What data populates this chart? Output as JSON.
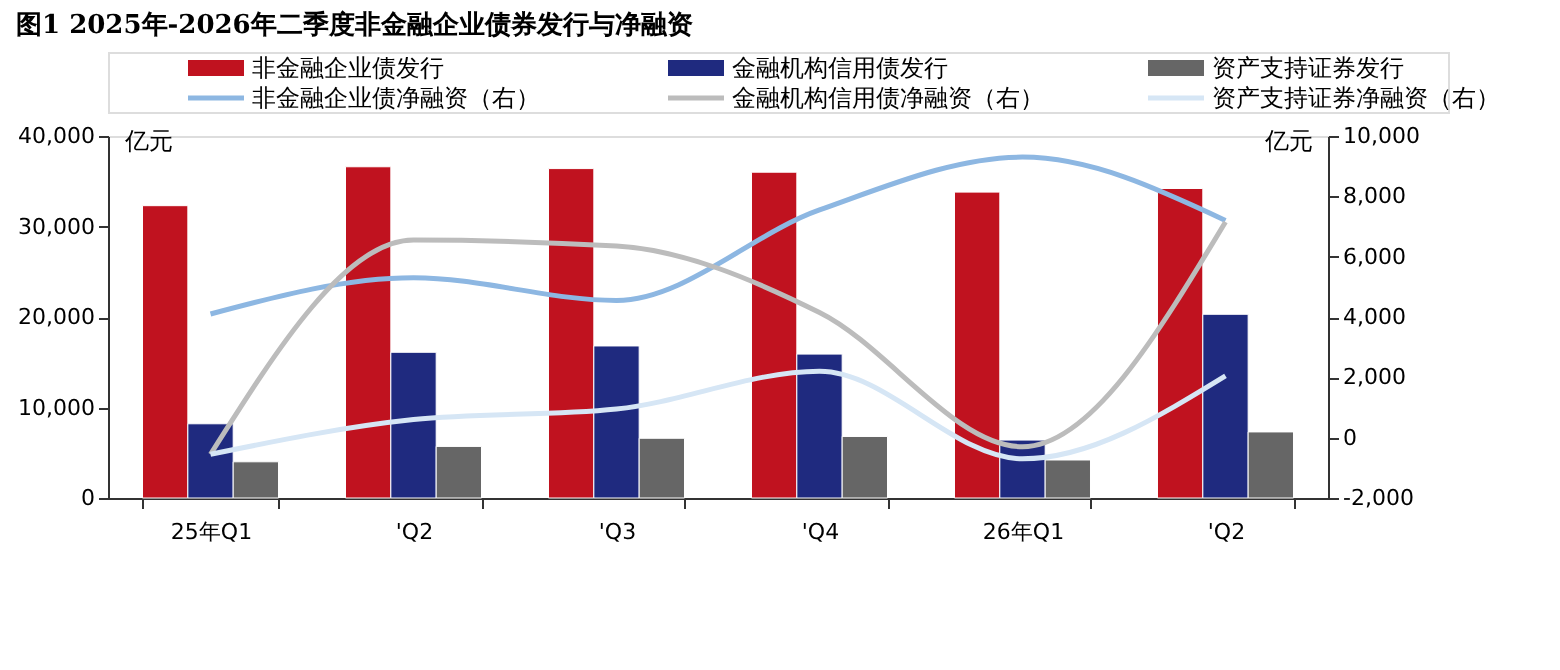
{
  "chart_data": {
    "type": "bar",
    "title": "图1 2025年-2026年二季度非金融企业债券发行与净融资",
    "categories": [
      "25年Q1",
      "'Q2",
      "'Q3",
      "'Q4",
      "26年Q1",
      "'Q2"
    ],
    "series": [
      {
        "name": "非金融企业债发行",
        "color": "#c0121f",
        "values": [
          32300,
          36600,
          36400,
          36000,
          33800,
          34200
        ]
      },
      {
        "name": "金融机构信用债发行",
        "color": "#1f2a7f",
        "values": [
          8200,
          16100,
          16800,
          15900,
          6400,
          20300
        ]
      },
      {
        "name": "资产支持证券发行",
        "color": "#666666",
        "values": [
          4000,
          5700,
          6600,
          6800,
          4200,
          7300
        ]
      },
      {
        "name": "非金融企业债净融资（右）",
        "type": "line",
        "axis": "y2",
        "color": "#8db7e2",
        "values": [
          4100,
          5300,
          4550,
          7550,
          9300,
          7200
        ]
      },
      {
        "name": "金融机构信用债净融资（右）",
        "type": "line",
        "axis": "y2",
        "color": "#bcbcbc",
        "values": [
          -550,
          6550,
          6350,
          4150,
          -300,
          7150
        ]
      },
      {
        "name": "资产支持证券净融资（右）",
        "type": "line",
        "axis": "y2",
        "color": "#d6e6f5",
        "values": [
          -550,
          600,
          950,
          2200,
          -700,
          2050
        ]
      }
    ],
    "ylabel": "亿元",
    "y2label": "亿元",
    "ylim": [
      0,
      40000
    ],
    "yticks": [
      0,
      {
        "value": 10000,
        "label": "10,000"
      },
      {
        "value": 20000,
        "label": "20,000"
      },
      {
        "value": 30000,
        "label": "30,000"
      },
      {
        "value": 40000,
        "label": "40,000"
      }
    ],
    "y2lim": [
      -2000,
      10000
    ],
    "y2ticks": [
      {
        "value": -2000,
        "label": "-2,000"
      },
      0,
      {
        "value": 2000,
        "label": "2,000"
      },
      {
        "value": 4000,
        "label": "4,000"
      },
      {
        "value": 6000,
        "label": "6,000"
      },
      {
        "value": 8000,
        "label": "8,000"
      },
      {
        "value": 10000,
        "label": "10,000"
      }
    ],
    "legend": "top",
    "grid": false,
    "marker": "none",
    "line_style": "solid"
  }
}
